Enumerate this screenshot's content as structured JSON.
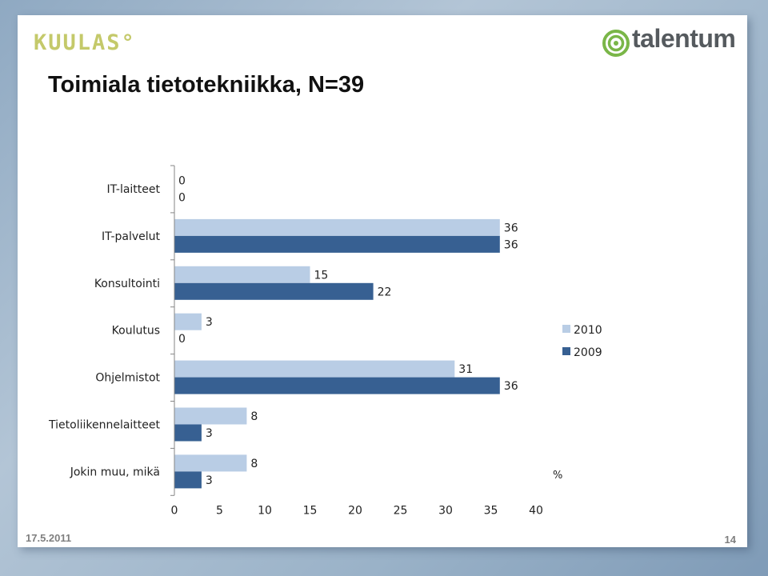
{
  "header": {
    "logo_left": "KUULAS°",
    "logo_right": "talentum",
    "title": "Toimiala tietotekniikka, N=39"
  },
  "footer": {
    "date": "17.5.2011",
    "page": "14"
  },
  "colors": {
    "series_2010": "#b9cde5",
    "series_2009": "#376092",
    "logo_left": "#c4c96a",
    "logo_right_ring": "#7ab648",
    "footer_text": "#7f7f7f"
  },
  "chart_data": {
    "type": "bar",
    "orientation": "horizontal",
    "categories": [
      "IT-laitteet",
      "IT-palvelut",
      "Konsultointi",
      "Koulutus",
      "Ohjelmistot",
      "Tietoliikennelaitteet",
      "Jokin muu, mikä"
    ],
    "series": [
      {
        "name": "2010",
        "values": [
          0,
          36,
          15,
          3,
          31,
          8,
          8
        ]
      },
      {
        "name": "2009",
        "values": [
          0,
          36,
          22,
          0,
          36,
          3,
          3
        ]
      }
    ],
    "xlabel": "%",
    "xlim": [
      0,
      40
    ],
    "xticks": [
      0,
      5,
      10,
      15,
      20,
      25,
      30,
      35,
      40
    ],
    "grid": false,
    "legend_position": "right",
    "data_labels": true
  }
}
